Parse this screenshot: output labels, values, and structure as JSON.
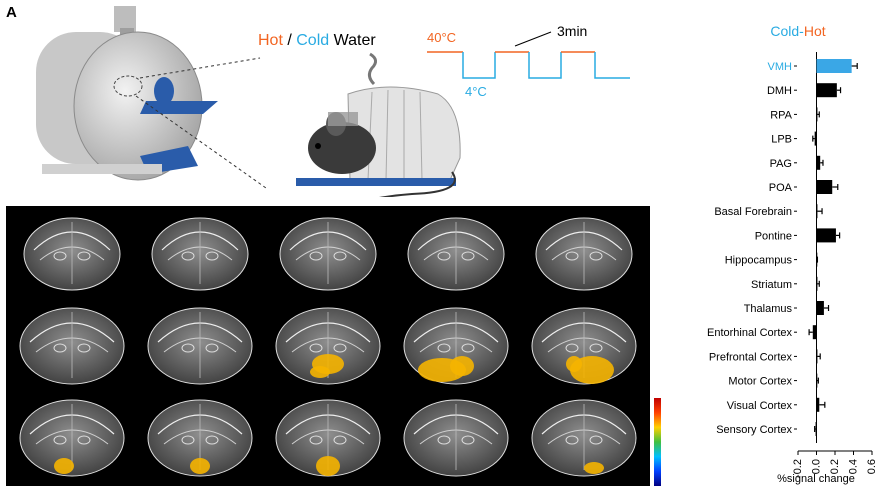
{
  "panel_label": "A",
  "stimulus": {
    "hot": "Hot",
    "separator": " / ",
    "cold": "Cold",
    "water": " Water",
    "temp_high": "40°C",
    "temp_low": "4°C",
    "period": "3min"
  },
  "colors": {
    "hot": "#f26522",
    "cold": "#29abe2",
    "bar_default": "#000000",
    "bar_highlight": "#3aa7e6"
  },
  "chart_data": {
    "type": "bar",
    "orientation": "horizontal",
    "title_cold": "Cold",
    "title_sep": "-",
    "title_hot": "Hot",
    "xlabel": "%signal change",
    "xlim": [
      -0.2,
      0.6
    ],
    "xticks": [
      "-0.2",
      "0.0",
      "0.2",
      "0.4",
      "0.6"
    ],
    "categories": [
      "VMH",
      "DMH",
      "RPA",
      "LPB",
      "PAG",
      "POA",
      "Basal Forebrain",
      "Pontine",
      "Hippocampus",
      "Striatum",
      "Thalamus",
      "Entorhinal Cortex",
      "Prefrontal Cortex",
      "Motor Cortex",
      "Visual Cortex",
      "Sensory Cortex"
    ],
    "values": [
      0.38,
      0.22,
      0.01,
      -0.02,
      0.04,
      0.17,
      0.01,
      0.21,
      0.0,
      0.01,
      0.08,
      -0.04,
      0.01,
      0.0,
      0.03,
      -0.01
    ],
    "errors": [
      0.06,
      0.04,
      0.02,
      0.02,
      0.03,
      0.06,
      0.05,
      0.04,
      0.01,
      0.02,
      0.05,
      0.04,
      0.03,
      0.02,
      0.06,
      0.01
    ],
    "highlight": "VMH"
  },
  "colorbar": {
    "min": "-",
    "max": "-"
  }
}
